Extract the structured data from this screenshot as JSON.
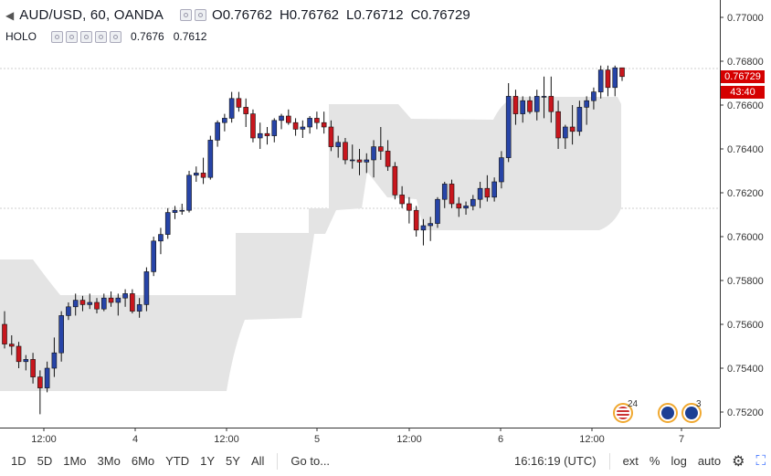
{
  "legend": {
    "symbol": "AUD/USD, 60, OANDA",
    "ohlc": [
      {
        "k": "O",
        "v": "0.76762"
      },
      {
        "k": "H",
        "v": "0.76762"
      },
      {
        "k": "L",
        "v": "0.76712"
      },
      {
        "k": "C",
        "v": "0.76729"
      }
    ]
  },
  "indicator": {
    "name": "HOLO",
    "v1": "0.7676",
    "v2": "0.7612"
  },
  "price_axis": {
    "labels": [
      "0.77000",
      "0.76800",
      "0.76600",
      "0.76400",
      "0.76200",
      "0.76000",
      "0.75800",
      "0.75600",
      "0.75400",
      "0.75200"
    ],
    "badge_price": "0.76729",
    "badge_countdown": "43:40"
  },
  "time_axis": {
    "labels": [
      "12:00",
      "4",
      "12:00",
      "5",
      "12:00",
      "6",
      "12:00",
      "7"
    ]
  },
  "events": [
    {
      "count": "24",
      "flag": "us-flag-icon"
    },
    {
      "count": "",
      "flag": "au-flag-icon"
    },
    {
      "count": "3",
      "flag": "au-flag-icon"
    }
  ],
  "toolbar": {
    "ranges": [
      "1D",
      "5D",
      "1Mo",
      "3Mo",
      "6Mo",
      "YTD",
      "1Y",
      "5Y",
      "All"
    ],
    "goto": "Go to...",
    "clock": "16:16:19 (UTC)",
    "ext": "ext",
    "percent": "%",
    "log": "log",
    "auto": "auto"
  },
  "colors": {
    "up": "#2744a7",
    "down": "#c8161d",
    "band": "#e4e4e4",
    "badge": "#d50000"
  },
  "chart_data": {
    "type": "candlestick",
    "ylim": [
      0.7515,
      0.771
    ],
    "candles": [
      [
        0.756,
        0.7566,
        0.7549,
        0.7551
      ],
      [
        0.7551,
        0.7555,
        0.7546,
        0.755
      ],
      [
        0.755,
        0.7552,
        0.754,
        0.7543
      ],
      [
        0.7543,
        0.7546,
        0.7539,
        0.7544
      ],
      [
        0.7544,
        0.7547,
        0.7533,
        0.7536
      ],
      [
        0.7536,
        0.7539,
        0.7519,
        0.7531
      ],
      [
        0.7531,
        0.7543,
        0.7529,
        0.754
      ],
      [
        0.754,
        0.7554,
        0.7536,
        0.7547
      ],
      [
        0.7547,
        0.7566,
        0.7543,
        0.7564
      ],
      [
        0.7564,
        0.757,
        0.7562,
        0.7568
      ],
      [
        0.7568,
        0.7574,
        0.7564,
        0.7571
      ],
      [
        0.7571,
        0.7573,
        0.7566,
        0.7569
      ],
      [
        0.7569,
        0.7574,
        0.7567,
        0.757
      ],
      [
        0.757,
        0.7572,
        0.7565,
        0.7567
      ],
      [
        0.7567,
        0.7574,
        0.7566,
        0.7572
      ],
      [
        0.7572,
        0.7575,
        0.7568,
        0.757
      ],
      [
        0.757,
        0.7574,
        0.7564,
        0.7572
      ],
      [
        0.7572,
        0.7576,
        0.7568,
        0.7574
      ],
      [
        0.7574,
        0.7576,
        0.7565,
        0.7566
      ],
      [
        0.7566,
        0.7572,
        0.7563,
        0.7569
      ],
      [
        0.7569,
        0.7586,
        0.7566,
        0.7584
      ],
      [
        0.7584,
        0.76,
        0.7582,
        0.7598
      ],
      [
        0.7598,
        0.7604,
        0.7592,
        0.7601
      ],
      [
        0.7601,
        0.7613,
        0.7599,
        0.7611
      ],
      [
        0.7611,
        0.7614,
        0.7608,
        0.7612
      ],
      [
        0.7612,
        0.7615,
        0.761,
        0.7612
      ],
      [
        0.7612,
        0.763,
        0.7611,
        0.7628
      ],
      [
        0.7628,
        0.7632,
        0.7625,
        0.7629
      ],
      [
        0.7629,
        0.7636,
        0.7624,
        0.7627
      ],
      [
        0.7627,
        0.7646,
        0.7626,
        0.7644
      ],
      [
        0.7644,
        0.7653,
        0.7641,
        0.7652
      ],
      [
        0.7652,
        0.7656,
        0.7648,
        0.7654
      ],
      [
        0.7654,
        0.7666,
        0.7652,
        0.7663
      ],
      [
        0.7663,
        0.7666,
        0.7657,
        0.7659
      ],
      [
        0.7659,
        0.7663,
        0.765,
        0.7656
      ],
      [
        0.7656,
        0.7658,
        0.7643,
        0.7645
      ],
      [
        0.7645,
        0.7652,
        0.764,
        0.7647
      ],
      [
        0.7647,
        0.765,
        0.7642,
        0.7646
      ],
      [
        0.7646,
        0.7654,
        0.7643,
        0.7653
      ],
      [
        0.7653,
        0.7656,
        0.7649,
        0.7655
      ],
      [
        0.7655,
        0.7658,
        0.7651,
        0.7652
      ],
      [
        0.7652,
        0.7654,
        0.7646,
        0.7649
      ],
      [
        0.7649,
        0.7653,
        0.7645,
        0.765
      ],
      [
        0.765,
        0.7655,
        0.7647,
        0.7654
      ],
      [
        0.7654,
        0.7657,
        0.7649,
        0.7652
      ],
      [
        0.7652,
        0.7657,
        0.7647,
        0.765
      ],
      [
        0.765,
        0.7653,
        0.7639,
        0.7641
      ],
      [
        0.7641,
        0.7646,
        0.7636,
        0.7643
      ],
      [
        0.7643,
        0.7645,
        0.7633,
        0.7635
      ],
      [
        0.7635,
        0.7642,
        0.7631,
        0.7635
      ],
      [
        0.7635,
        0.764,
        0.7628,
        0.7634
      ],
      [
        0.7634,
        0.7638,
        0.7629,
        0.7635
      ],
      [
        0.7635,
        0.7644,
        0.7627,
        0.7641
      ],
      [
        0.7641,
        0.765,
        0.7635,
        0.7639
      ],
      [
        0.7639,
        0.7644,
        0.763,
        0.7632
      ],
      [
        0.7632,
        0.7634,
        0.7617,
        0.7619
      ],
      [
        0.7619,
        0.7623,
        0.7613,
        0.7615
      ],
      [
        0.7615,
        0.7618,
        0.7606,
        0.7612
      ],
      [
        0.7612,
        0.7614,
        0.76,
        0.7603
      ],
      [
        0.7603,
        0.7608,
        0.7596,
        0.7605
      ],
      [
        0.7605,
        0.7609,
        0.7598,
        0.7606
      ],
      [
        0.7606,
        0.7618,
        0.7604,
        0.7617
      ],
      [
        0.7617,
        0.7625,
        0.7613,
        0.7624
      ],
      [
        0.7624,
        0.7626,
        0.7613,
        0.7615
      ],
      [
        0.7615,
        0.7618,
        0.7609,
        0.7613
      ],
      [
        0.7613,
        0.7616,
        0.761,
        0.7614
      ],
      [
        0.7614,
        0.7619,
        0.7612,
        0.7617
      ],
      [
        0.7617,
        0.7625,
        0.7613,
        0.7622
      ],
      [
        0.7622,
        0.7628,
        0.7616,
        0.7618
      ],
      [
        0.7618,
        0.7627,
        0.7616,
        0.7625
      ],
      [
        0.7625,
        0.7639,
        0.7622,
        0.7636
      ],
      [
        0.7636,
        0.767,
        0.7634,
        0.7664
      ],
      [
        0.7664,
        0.7667,
        0.7651,
        0.7656
      ],
      [
        0.7656,
        0.7664,
        0.7652,
        0.7662
      ],
      [
        0.7662,
        0.7664,
        0.7656,
        0.7657
      ],
      [
        0.7657,
        0.7667,
        0.7653,
        0.7664
      ],
      [
        0.7664,
        0.7673,
        0.7654,
        0.7664
      ],
      [
        0.7664,
        0.7673,
        0.7652,
        0.7657
      ],
      [
        0.7657,
        0.7662,
        0.764,
        0.7645
      ],
      [
        0.7645,
        0.7651,
        0.764,
        0.765
      ],
      [
        0.765,
        0.766,
        0.7642,
        0.7648
      ],
      [
        0.7648,
        0.7662,
        0.7646,
        0.7659
      ],
      [
        0.7659,
        0.7664,
        0.7651,
        0.7662
      ],
      [
        0.7662,
        0.7668,
        0.7658,
        0.7666
      ],
      [
        0.7666,
        0.7678,
        0.7663,
        0.7676
      ],
      [
        0.7676,
        0.7678,
        0.7664,
        0.7668
      ],
      [
        0.7668,
        0.7678,
        0.7664,
        0.7677
      ],
      [
        0.7677,
        0.7677,
        0.7671,
        0.7673
      ]
    ]
  }
}
